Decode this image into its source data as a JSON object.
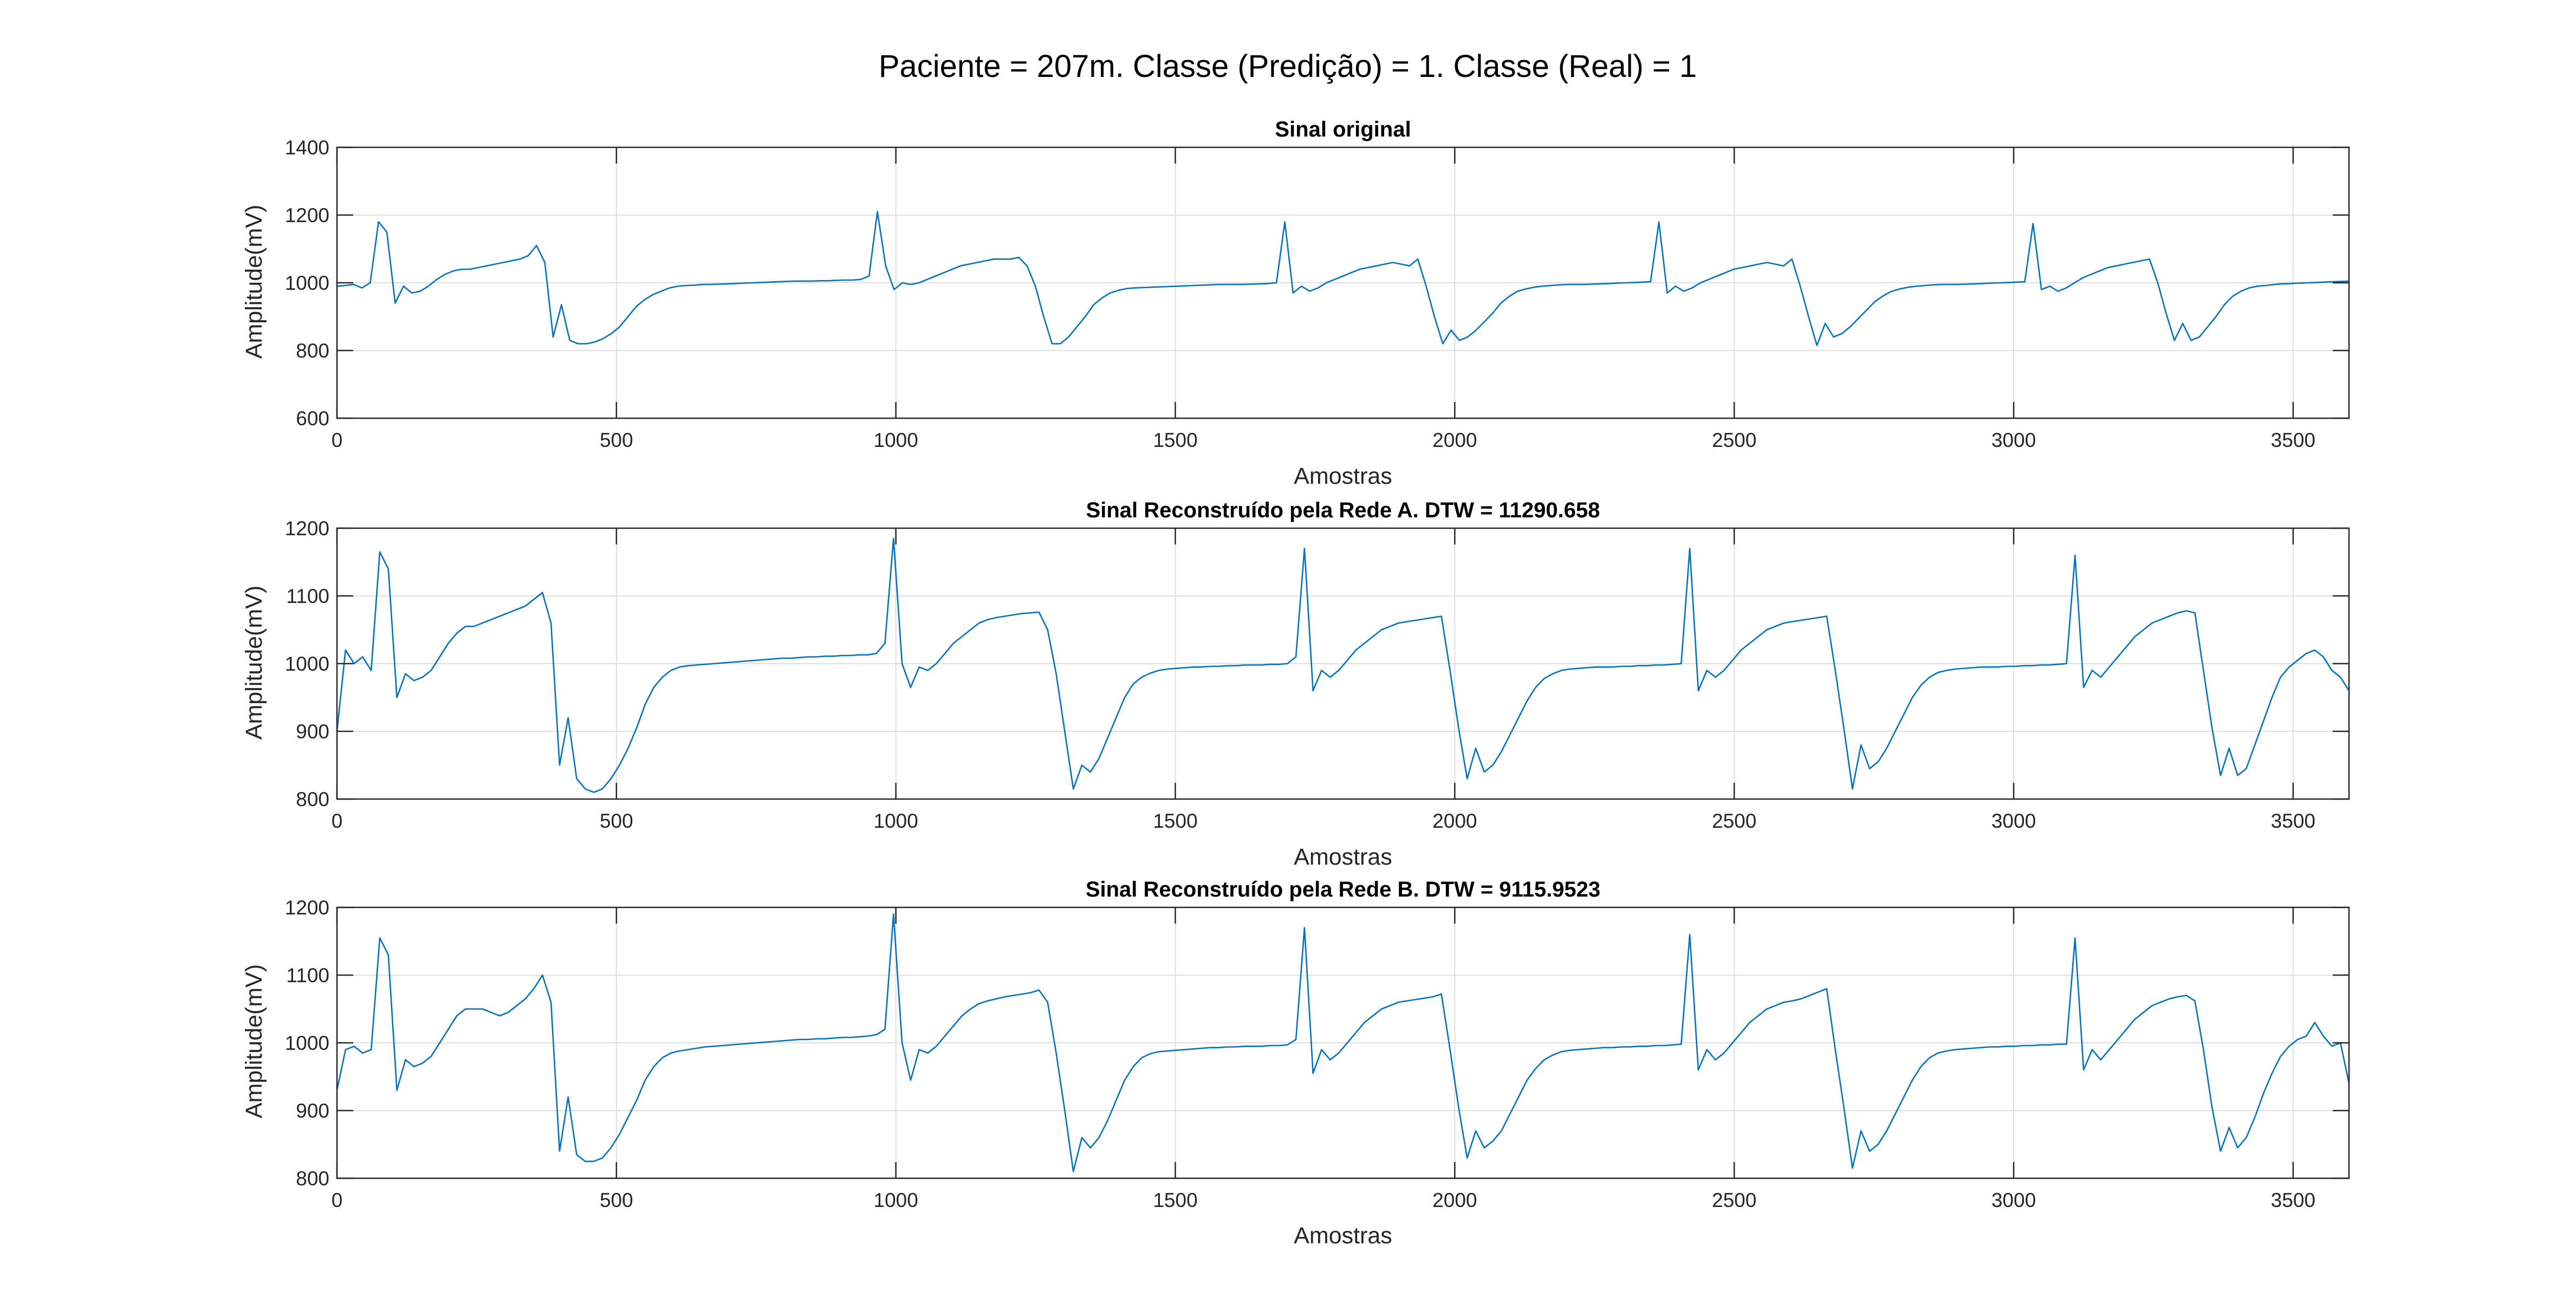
{
  "figure": {
    "suptitle": "Paciente = 207m. Classe (Predição) = 1. Classe (Real) = 1"
  },
  "colors": {
    "series": "#0072bd"
  },
  "chart_data": [
    {
      "type": "line",
      "title": "Sinal original",
      "xlabel": "Amostras",
      "ylabel": "Amplitude(mV)",
      "xlim": [
        0,
        3600
      ],
      "ylim": [
        600,
        1400
      ],
      "xticks": [
        0,
        500,
        1000,
        1500,
        2000,
        2500,
        3000,
        3500
      ],
      "yticks": [
        600,
        800,
        1000,
        1200,
        1400
      ],
      "grid": true,
      "series": [
        {
          "values": [
            990,
            992,
            995,
            985,
            1000,
            1180,
            1150,
            940,
            990,
            970,
            975,
            990,
            1010,
            1025,
            1035,
            1040,
            1040,
            1045,
            1050,
            1055,
            1060,
            1065,
            1070,
            1080,
            1110,
            1060,
            840,
            935,
            830,
            820,
            820,
            825,
            835,
            850,
            870,
            900,
            930,
            950,
            965,
            975,
            985,
            990,
            992,
            993,
            995,
            995,
            996,
            997,
            998,
            999,
            1000,
            1001,
            1002,
            1003,
            1004,
            1005,
            1005,
            1005,
            1006,
            1006,
            1007,
            1008,
            1008,
            1010,
            1020,
            1210,
            1050,
            980,
            1000,
            995,
            1000,
            1010,
            1020,
            1030,
            1040,
            1050,
            1055,
            1060,
            1065,
            1070,
            1070,
            1070,
            1075,
            1050,
            990,
            900,
            820,
            820,
            840,
            870,
            900,
            935,
            955,
            970,
            978,
            983,
            985,
            986,
            987,
            988,
            989,
            990,
            991,
            992,
            993,
            994,
            995,
            995,
            995,
            995,
            996,
            997,
            998,
            1000,
            1180,
            970,
            990,
            975,
            985,
            1000,
            1010,
            1020,
            1030,
            1040,
            1045,
            1050,
            1055,
            1060,
            1055,
            1050,
            1070,
            990,
            900,
            820,
            860,
            830,
            840,
            860,
            885,
            910,
            940,
            960,
            975,
            982,
            987,
            990,
            992,
            994,
            995,
            995,
            995,
            996,
            997,
            998,
            999,
            1000,
            1001,
            1002,
            1003,
            1180,
            970,
            990,
            975,
            985,
            1000,
            1010,
            1020,
            1030,
            1040,
            1045,
            1050,
            1055,
            1060,
            1055,
            1050,
            1070,
            990,
            900,
            815,
            880,
            840,
            850,
            870,
            895,
            920,
            945,
            962,
            975,
            982,
            987,
            990,
            992,
            994,
            995,
            995,
            995,
            996,
            997,
            998,
            999,
            1000,
            1001,
            1002,
            1003,
            1175,
            980,
            990,
            975,
            985,
            1000,
            1015,
            1025,
            1035,
            1045,
            1050,
            1055,
            1060,
            1065,
            1070,
            1000,
            910,
            830,
            880,
            830,
            840,
            870,
            900,
            935,
            960,
            975,
            985,
            990,
            992,
            995,
            997,
            998,
            999,
            1000,
            1001,
            1002,
            1003,
            1004,
            1005
          ]
        }
      ]
    },
    {
      "type": "line",
      "title": "Sinal Reconstruído pela Rede A. DTW = 11290.658",
      "xlabel": "Amostras",
      "ylabel": "Amplitude(mV)",
      "xlim": [
        0,
        3600
      ],
      "ylim": [
        800,
        1200
      ],
      "xticks": [
        0,
        500,
        1000,
        1500,
        2000,
        2500,
        3000,
        3500
      ],
      "yticks": [
        800,
        900,
        1000,
        1100,
        1200
      ],
      "grid": true,
      "series": [
        {
          "values": [
            900,
            1020,
            1000,
            1010,
            990,
            1165,
            1140,
            950,
            985,
            975,
            980,
            990,
            1010,
            1030,
            1045,
            1055,
            1055,
            1060,
            1065,
            1070,
            1075,
            1080,
            1085,
            1095,
            1105,
            1060,
            850,
            920,
            830,
            815,
            810,
            815,
            830,
            850,
            875,
            905,
            940,
            965,
            980,
            990,
            995,
            997,
            998,
            999,
            1000,
            1001,
            1002,
            1003,
            1004,
            1005,
            1006,
            1007,
            1008,
            1008,
            1009,
            1010,
            1010,
            1011,
            1011,
            1012,
            1012,
            1013,
            1013,
            1015,
            1030,
            1185,
            1000,
            965,
            995,
            990,
            1000,
            1015,
            1030,
            1040,
            1050,
            1060,
            1065,
            1068,
            1070,
            1072,
            1074,
            1075,
            1076,
            1050,
            985,
            900,
            815,
            850,
            840,
            860,
            890,
            920,
            950,
            970,
            980,
            986,
            990,
            992,
            993,
            994,
            995,
            995,
            996,
            996,
            997,
            997,
            998,
            998,
            998,
            999,
            999,
            1000,
            1010,
            1170,
            960,
            990,
            980,
            990,
            1005,
            1020,
            1030,
            1040,
            1050,
            1055,
            1060,
            1062,
            1064,
            1066,
            1068,
            1070,
            990,
            905,
            830,
            875,
            840,
            850,
            870,
            895,
            920,
            945,
            965,
            978,
            985,
            990,
            992,
            993,
            994,
            995,
            995,
            995,
            996,
            996,
            997,
            997,
            998,
            998,
            999,
            1000,
            1170,
            960,
            990,
            980,
            990,
            1005,
            1020,
            1030,
            1040,
            1050,
            1055,
            1060,
            1062,
            1064,
            1066,
            1068,
            1070,
            990,
            905,
            815,
            880,
            845,
            855,
            875,
            900,
            925,
            950,
            968,
            980,
            987,
            990,
            992,
            993,
            994,
            995,
            995,
            995,
            996,
            996,
            997,
            997,
            998,
            998,
            999,
            1000,
            1160,
            965,
            990,
            980,
            995,
            1010,
            1025,
            1040,
            1050,
            1060,
            1065,
            1070,
            1075,
            1078,
            1075,
            990,
            905,
            835,
            875,
            835,
            845,
            880,
            915,
            950,
            980,
            995,
            1005,
            1015,
            1020,
            1010,
            990,
            980,
            960
          ]
        }
      ]
    },
    {
      "type": "line",
      "title": "Sinal Reconstruído pela Rede B. DTW = 9115.9523",
      "xlabel": "Amostras",
      "ylabel": "Amplitude(mV)",
      "xlim": [
        0,
        3600
      ],
      "ylim": [
        800,
        1200
      ],
      "xticks": [
        0,
        500,
        1000,
        1500,
        2000,
        2500,
        3000,
        3500
      ],
      "yticks": [
        800,
        900,
        1000,
        1100,
        1200
      ],
      "grid": true,
      "series": [
        {
          "values": [
            930,
            990,
            995,
            985,
            990,
            1155,
            1130,
            930,
            975,
            965,
            970,
            980,
            1000,
            1020,
            1040,
            1050,
            1050,
            1050,
            1045,
            1040,
            1045,
            1055,
            1065,
            1080,
            1100,
            1060,
            840,
            920,
            835,
            825,
            825,
            830,
            845,
            865,
            890,
            915,
            945,
            965,
            978,
            985,
            988,
            990,
            992,
            994,
            995,
            996,
            997,
            998,
            999,
            1000,
            1001,
            1002,
            1003,
            1004,
            1005,
            1005,
            1006,
            1006,
            1007,
            1008,
            1008,
            1009,
            1010,
            1012,
            1020,
            1190,
            1000,
            945,
            990,
            985,
            995,
            1010,
            1025,
            1040,
            1050,
            1058,
            1062,
            1065,
            1068,
            1070,
            1072,
            1074,
            1078,
            1060,
            985,
            900,
            810,
            860,
            845,
            860,
            885,
            915,
            945,
            965,
            978,
            984,
            987,
            988,
            989,
            990,
            991,
            992,
            993,
            993,
            994,
            994,
            995,
            995,
            995,
            996,
            996,
            997,
            1005,
            1170,
            955,
            990,
            975,
            985,
            1000,
            1015,
            1030,
            1040,
            1050,
            1055,
            1060,
            1062,
            1064,
            1066,
            1068,
            1072,
            990,
            905,
            830,
            870,
            845,
            855,
            870,
            895,
            920,
            945,
            962,
            975,
            982,
            987,
            989,
            990,
            991,
            992,
            993,
            993,
            994,
            994,
            995,
            995,
            996,
            996,
            997,
            998,
            1160,
            960,
            990,
            975,
            985,
            1000,
            1015,
            1030,
            1040,
            1050,
            1055,
            1060,
            1062,
            1065,
            1070,
            1075,
            1080,
            990,
            905,
            815,
            870,
            840,
            850,
            870,
            895,
            920,
            945,
            965,
            978,
            985,
            988,
            990,
            991,
            992,
            993,
            994,
            994,
            995,
            995,
            996,
            996,
            997,
            997,
            998,
            998,
            1155,
            960,
            990,
            975,
            990,
            1005,
            1020,
            1035,
            1045,
            1055,
            1060,
            1065,
            1068,
            1070,
            1062,
            990,
            905,
            840,
            875,
            845,
            860,
            890,
            925,
            955,
            980,
            995,
            1005,
            1010,
            1030,
            1010,
            995,
            1000,
            940
          ]
        }
      ]
    }
  ]
}
